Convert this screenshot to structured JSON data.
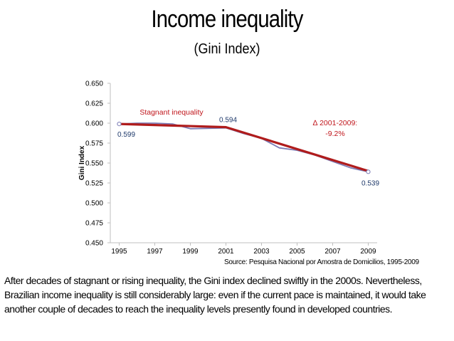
{
  "slide": {
    "title": "Income inequality",
    "subtitle": "(Gini Index)",
    "source": "Source: Pesquisa Nacional por Amostra de Domicilios, 1995-2009",
    "caption": "After decades of stagnant or rising inequality, the Gini index declined swiftly in the 2000s. Nevertheless, Brazilian income inequality is still considerably large: even if the current pace is maintained, it would take another couple of decades to reach the inequality levels presently found in developed countries."
  },
  "chart_data": {
    "type": "line",
    "title": "",
    "xlabel": "",
    "ylabel": "Gini Index",
    "ylim": [
      0.45,
      0.65
    ],
    "yticks": [
      "0.450",
      "0.475",
      "0.500",
      "0.525",
      "0.550",
      "0.575",
      "0.600",
      "0.625",
      "0.650"
    ],
    "xticks": [
      "1995",
      "1997",
      "1999",
      "2001",
      "2003",
      "2005",
      "2007",
      "2009"
    ],
    "xlim": [
      1994.5,
      2009.5
    ],
    "grid": false,
    "series": [
      {
        "name": "",
        "color": "#7b7bb5",
        "x": [
          1995,
          1996,
          1997,
          1998,
          1999,
          2001,
          2002,
          2003,
          2004,
          2005,
          2006,
          2007,
          2008,
          2009
        ],
        "values": [
          0.599,
          0.6,
          0.6,
          0.599,
          0.593,
          0.594,
          0.587,
          0.581,
          0.569,
          0.566,
          0.56,
          0.552,
          0.544,
          0.539
        ]
      },
      {
        "name": "",
        "color": "#b01c1c",
        "x": [
          1995,
          2001,
          2009
        ],
        "values": [
          0.599,
          0.595,
          0.54
        ]
      }
    ],
    "data_labels": [
      {
        "x": 1995,
        "y": 0.599,
        "text": "0.599"
      },
      {
        "x": 2001,
        "y": 0.594,
        "text": "0.594"
      },
      {
        "x": 2009,
        "y": 0.539,
        "text": "0.539"
      }
    ],
    "annotations": {
      "stagnant": "Stagnant inequality",
      "change_period": "∆ 2001-2009:",
      "change_value": "-9.2%"
    },
    "colors": {
      "axis": "#bfbfbf",
      "label_blue": "#1f3a6b",
      "annotation_red": "#c0151b",
      "tick": "#000000"
    }
  }
}
